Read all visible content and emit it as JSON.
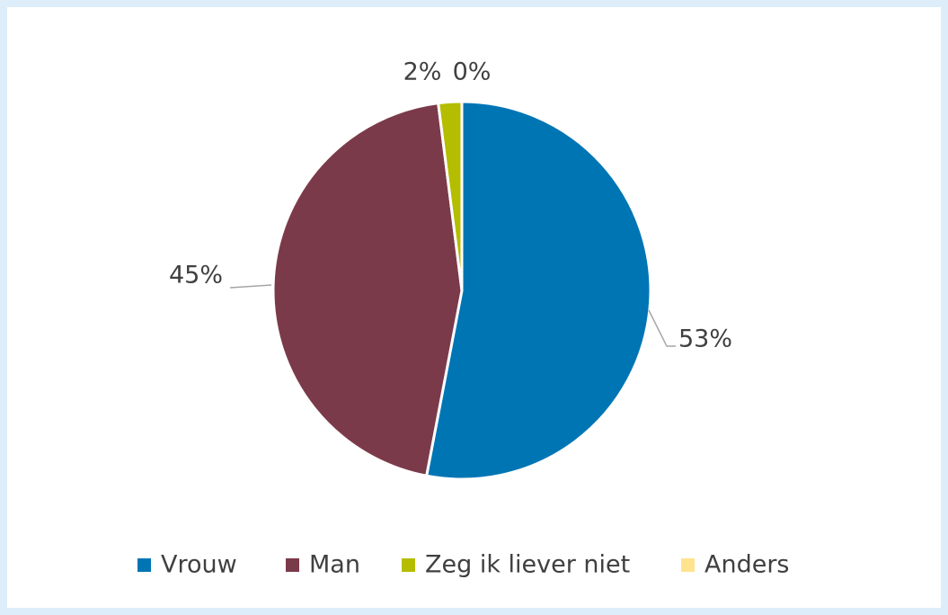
{
  "chart_data": {
    "type": "pie",
    "categories": [
      "Vrouw",
      "Man",
      "Zeg ik liever niet",
      "Anders"
    ],
    "values": [
      53,
      45,
      2,
      0
    ],
    "value_labels": [
      "53%",
      "45%",
      "2%",
      "0%"
    ],
    "colors": [
      "#0075b4",
      "#7b3a4a",
      "#b5bd00",
      "#ffe38f"
    ],
    "legend": "bottom"
  }
}
